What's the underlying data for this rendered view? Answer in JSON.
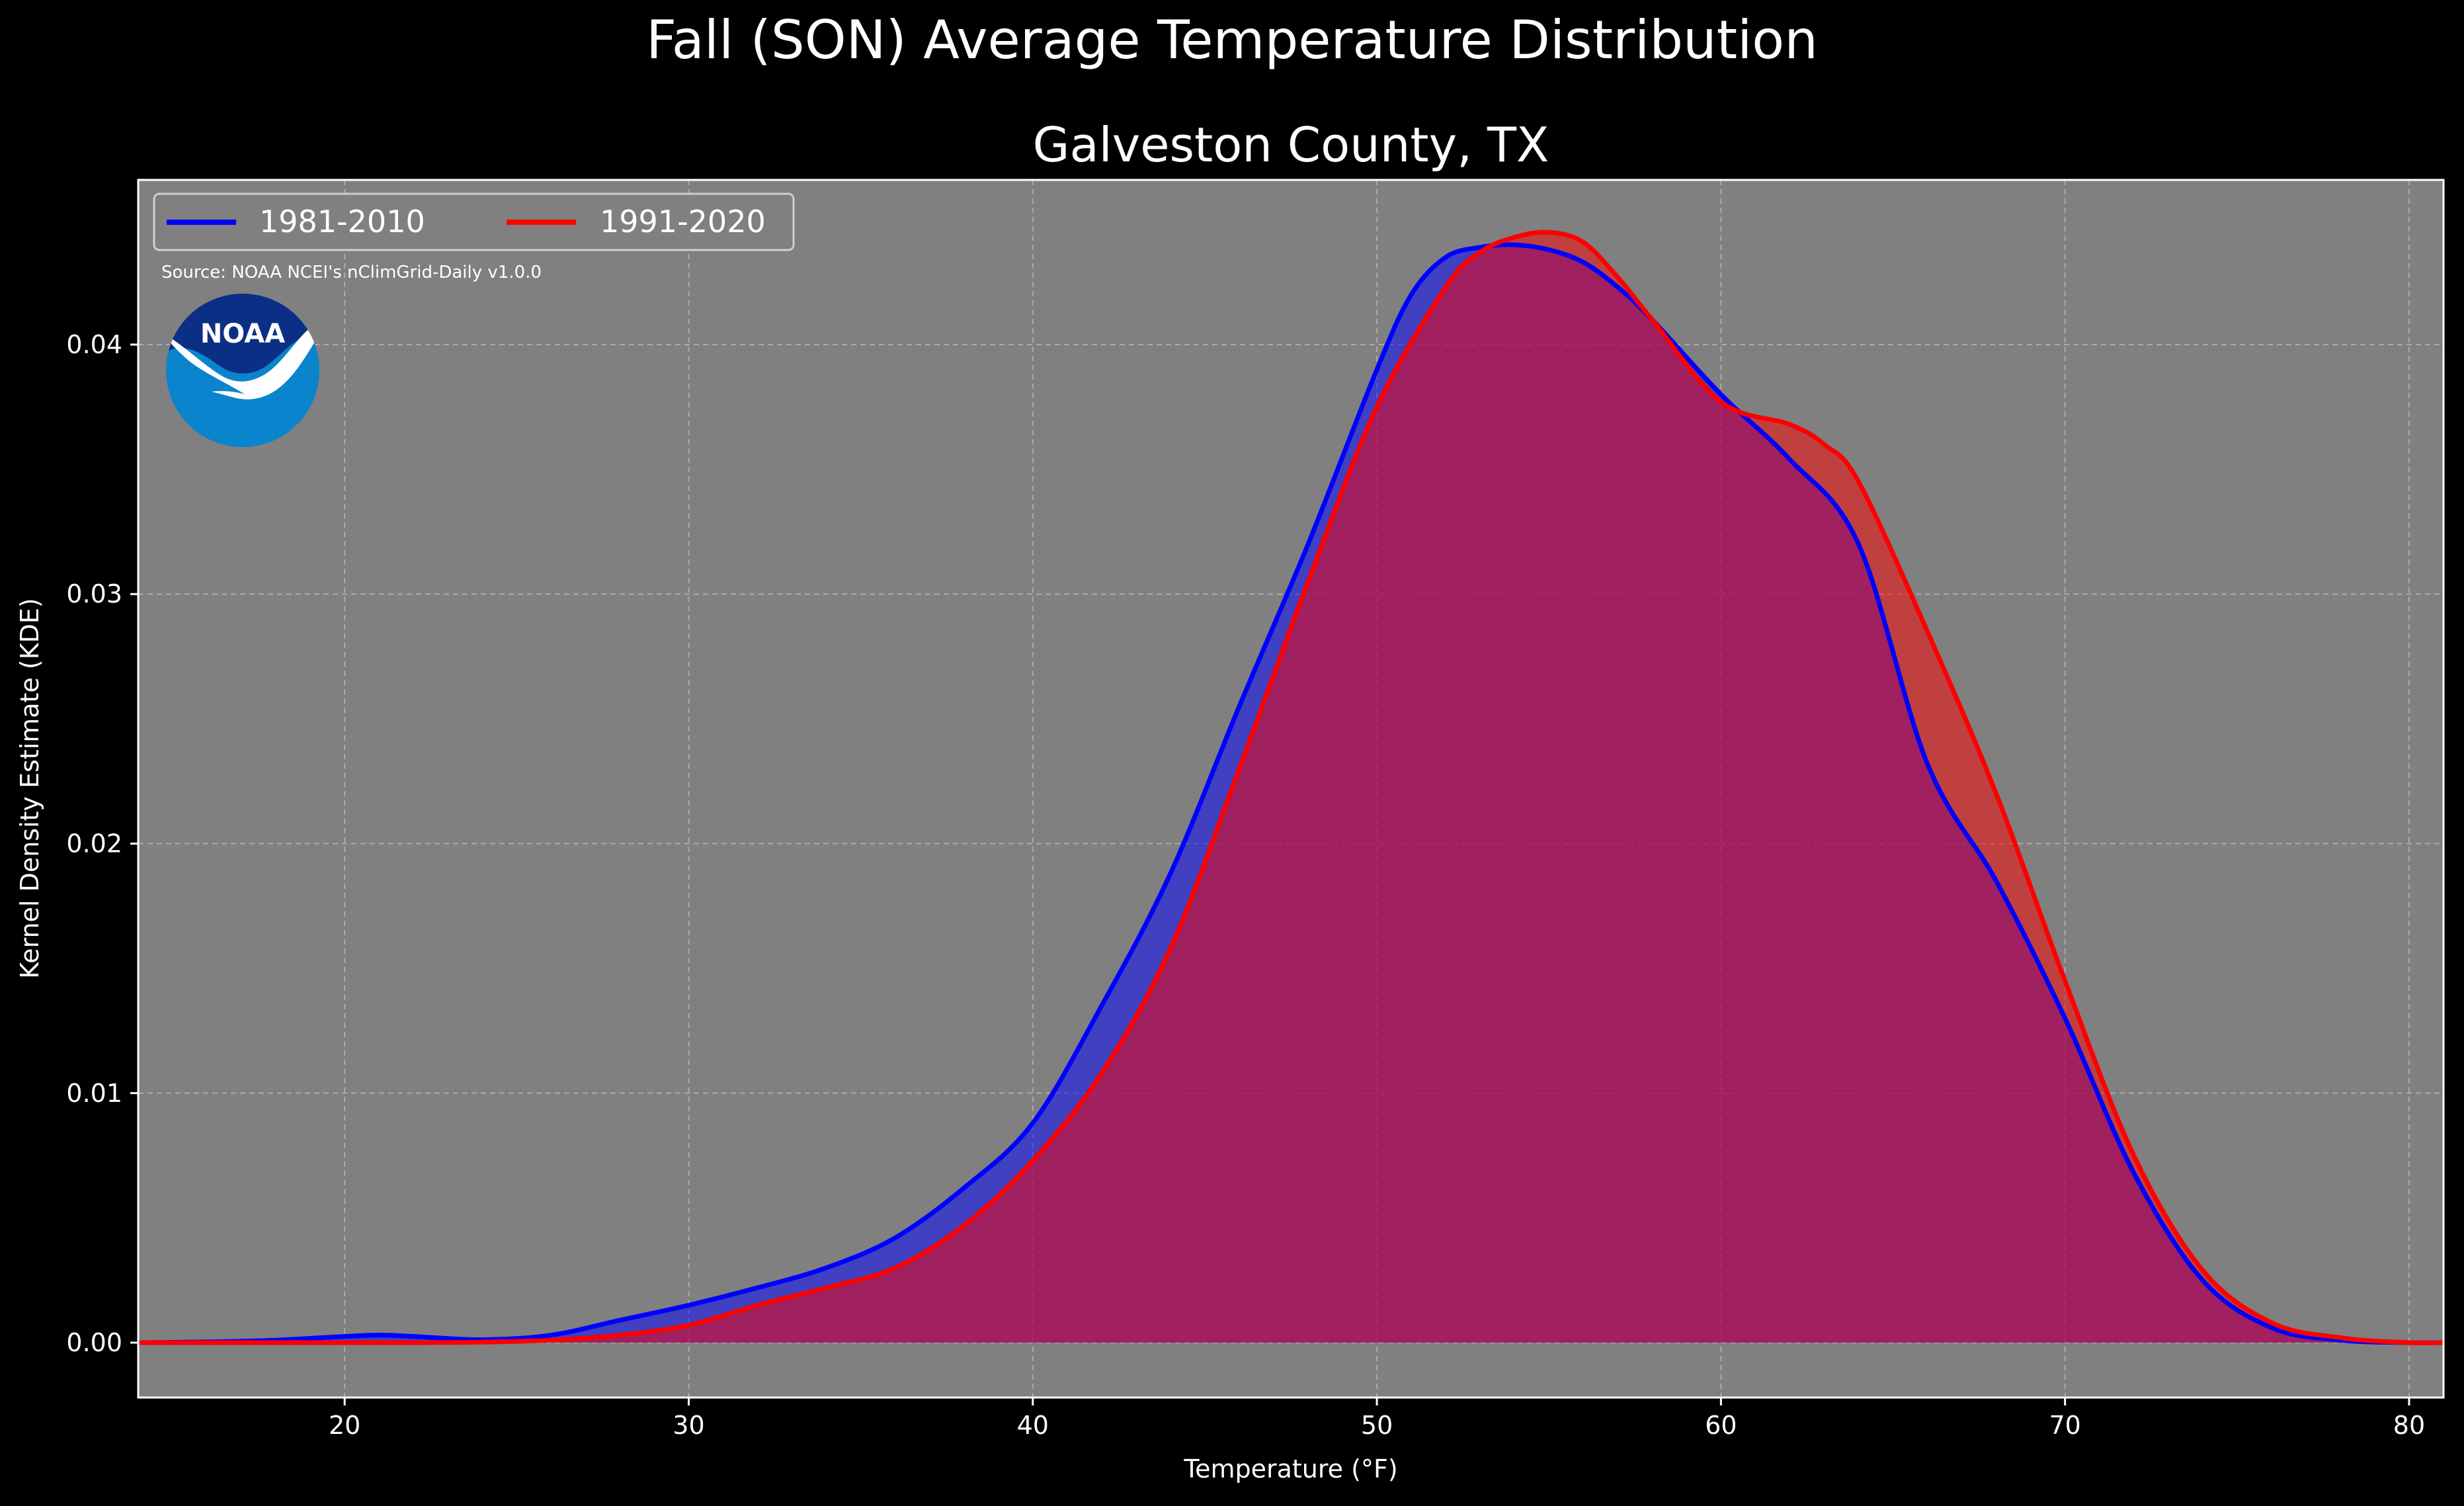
{
  "chart_data": {
    "type": "area",
    "title": "Fall (SON) Average Temperature Distribution",
    "subtitle": "Galveston County, TX",
    "xlabel": "Temperature ($^\\circ$F)",
    "xlabel_display": "Temperature (°F)",
    "ylabel": "Kernel Density Estimate (KDE)",
    "source": "Source: NOAA NCEI's nClimGrid-Daily v1.0.0",
    "logo_text": "NOAA",
    "xlim": [
      14,
      81
    ],
    "ylim": [
      -0.0022,
      0.0466
    ],
    "xticks": [
      20,
      30,
      40,
      50,
      60,
      70,
      80
    ],
    "yticks": [
      0.0,
      0.01,
      0.02,
      0.03,
      0.04
    ],
    "ytick_labels": [
      "0.00",
      "0.01",
      "0.02",
      "0.03",
      "0.04"
    ],
    "grid": true,
    "legend_position": "top-left",
    "colors": {
      "figure_bg": "#000000",
      "axes_bg": "#808080",
      "text": "#ffffff",
      "series_1981": "#0000ff",
      "series_1991": "#ff0000"
    },
    "series": [
      {
        "name": "1981-2010",
        "color": "#0000ff",
        "x": [
          14,
          16,
          18,
          20,
          21,
          22,
          24,
          26,
          28,
          30,
          32,
          34,
          36,
          38,
          40,
          42,
          44,
          46,
          48,
          50,
          51,
          52,
          53,
          54,
          55,
          56,
          57,
          58,
          60,
          62,
          64,
          66,
          68,
          70,
          72,
          74,
          76,
          78,
          80,
          81
        ],
        "values": [
          0.0,
          3e-05,
          0.0001,
          0.00025,
          0.0003,
          0.00025,
          0.00012,
          0.0003,
          0.0009,
          0.0015,
          0.0022,
          0.003,
          0.0042,
          0.0062,
          0.0088,
          0.0135,
          0.0188,
          0.0255,
          0.032,
          0.039,
          0.042,
          0.0435,
          0.0439,
          0.044,
          0.0438,
          0.0433,
          0.0423,
          0.041,
          0.038,
          0.0354,
          0.032,
          0.0232,
          0.0185,
          0.013,
          0.0068,
          0.0025,
          0.0006,
          0.0001,
          0.0,
          0.0
        ]
      },
      {
        "name": "1991-2020",
        "color": "#ff0000",
        "x": [
          14,
          16,
          18,
          20,
          22,
          24,
          26,
          28,
          30,
          32,
          34,
          36,
          38,
          40,
          42,
          44,
          46,
          48,
          50,
          52,
          53,
          54,
          55,
          56,
          57,
          58,
          60,
          62,
          63,
          64,
          66,
          68,
          70,
          72,
          74,
          76,
          78,
          80,
          81
        ],
        "values": [
          0.0,
          0.0,
          0.0,
          0.0,
          0.0,
          2e-05,
          0.0001,
          0.0003,
          0.0007,
          0.0015,
          0.0022,
          0.003,
          0.0047,
          0.0073,
          0.0108,
          0.0158,
          0.023,
          0.0305,
          0.0375,
          0.0423,
          0.0437,
          0.0443,
          0.0445,
          0.0441,
          0.0427,
          0.041,
          0.0377,
          0.0368,
          0.036,
          0.0345,
          0.0285,
          0.022,
          0.0145,
          0.0075,
          0.0029,
          0.0008,
          0.0002,
          0.0,
          0.0
        ]
      }
    ]
  }
}
